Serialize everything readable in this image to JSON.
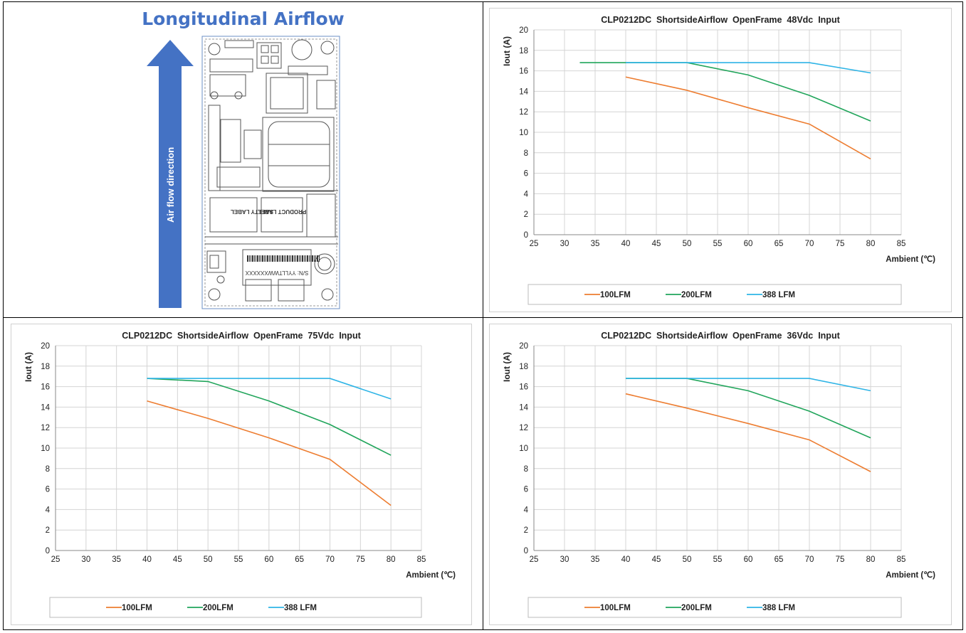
{
  "left_panel": {
    "title": "Longitudinal Airflow",
    "arrow_label": "Air flow direction",
    "board_labels": [
      "SAFETY LABEL",
      "PRODUCT LABEL",
      "S/N: YYLLTWWXXXXXX"
    ],
    "colors": {
      "title": "#4472c4",
      "arrow": "#4472c4"
    }
  },
  "chart_data": [
    {
      "type": "line",
      "title": "CLP0212DC  ShortsideAirflow  OpenFrame  48Vdc  Input",
      "xlabel": "Ambient (℃)",
      "ylabel": "Iout (A)",
      "xlim": [
        25,
        85
      ],
      "ylim": [
        0,
        20
      ],
      "xticks": [
        25,
        30,
        35,
        40,
        45,
        50,
        55,
        60,
        65,
        70,
        75,
        80,
        85
      ],
      "yticks": [
        0,
        2,
        4,
        6,
        8,
        10,
        12,
        14,
        16,
        18,
        20
      ],
      "grid": true,
      "legend": "bottom",
      "series": [
        {
          "name": "100LFM",
          "color": "#ed7d31",
          "x": [
            40,
            50,
            60,
            70,
            80
          ],
          "y": [
            15.4,
            14.1,
            12.4,
            10.8,
            7.4
          ]
        },
        {
          "name": "200LFM",
          "color": "#21a55b",
          "x": [
            32.5,
            50,
            60,
            70,
            80
          ],
          "y": [
            16.8,
            16.8,
            15.6,
            13.6,
            11.1
          ]
        },
        {
          "name": "388 LFM",
          "color": "#2eb4e6",
          "x": [
            40,
            50,
            60,
            70,
            80
          ],
          "y": [
            16.8,
            16.8,
            16.8,
            16.8,
            15.8
          ]
        }
      ]
    },
    {
      "type": "line",
      "title": "CLP0212DC  ShortsideAirflow  OpenFrame  75Vdc  Input",
      "xlabel": "Ambient (℃)",
      "ylabel": "Iout (A)",
      "xlim": [
        25,
        85
      ],
      "ylim": [
        0,
        20
      ],
      "xticks": [
        25,
        30,
        35,
        40,
        45,
        50,
        55,
        60,
        65,
        70,
        75,
        80,
        85
      ],
      "yticks": [
        0,
        2,
        4,
        6,
        8,
        10,
        12,
        14,
        16,
        18,
        20
      ],
      "grid": true,
      "legend": "bottom",
      "series": [
        {
          "name": "100LFM",
          "color": "#ed7d31",
          "x": [
            40,
            50,
            60,
            70,
            80
          ],
          "y": [
            14.6,
            12.9,
            11.0,
            8.9,
            4.4
          ]
        },
        {
          "name": "200LFM",
          "color": "#21a55b",
          "x": [
            40,
            50,
            60,
            70,
            80
          ],
          "y": [
            16.8,
            16.5,
            14.6,
            12.3,
            9.3
          ]
        },
        {
          "name": "388 LFM",
          "color": "#2eb4e6",
          "x": [
            40,
            50,
            60,
            70,
            80
          ],
          "y": [
            16.8,
            16.8,
            16.8,
            16.8,
            14.8
          ]
        }
      ]
    },
    {
      "type": "line",
      "title": "CLP0212DC  ShortsideAirflow  OpenFrame  36Vdc  Input",
      "xlabel": "Ambient (℃)",
      "ylabel": "Iout (A)",
      "xlim": [
        25,
        85
      ],
      "ylim": [
        0,
        20
      ],
      "xticks": [
        25,
        30,
        35,
        40,
        45,
        50,
        55,
        60,
        65,
        70,
        75,
        80,
        85
      ],
      "yticks": [
        0,
        2,
        4,
        6,
        8,
        10,
        12,
        14,
        16,
        18,
        20
      ],
      "grid": true,
      "legend": "bottom",
      "series": [
        {
          "name": "100LFM",
          "color": "#ed7d31",
          "x": [
            40,
            50,
            60,
            70,
            80
          ],
          "y": [
            15.3,
            13.9,
            12.4,
            10.8,
            7.7
          ]
        },
        {
          "name": "200LFM",
          "color": "#21a55b",
          "x": [
            40,
            50,
            60,
            70,
            80
          ],
          "y": [
            16.8,
            16.8,
            15.6,
            13.6,
            11.0
          ]
        },
        {
          "name": "388 LFM",
          "color": "#2eb4e6",
          "x": [
            40,
            50,
            60,
            70,
            80
          ],
          "y": [
            16.8,
            16.8,
            16.8,
            16.8,
            15.6
          ]
        }
      ]
    }
  ]
}
